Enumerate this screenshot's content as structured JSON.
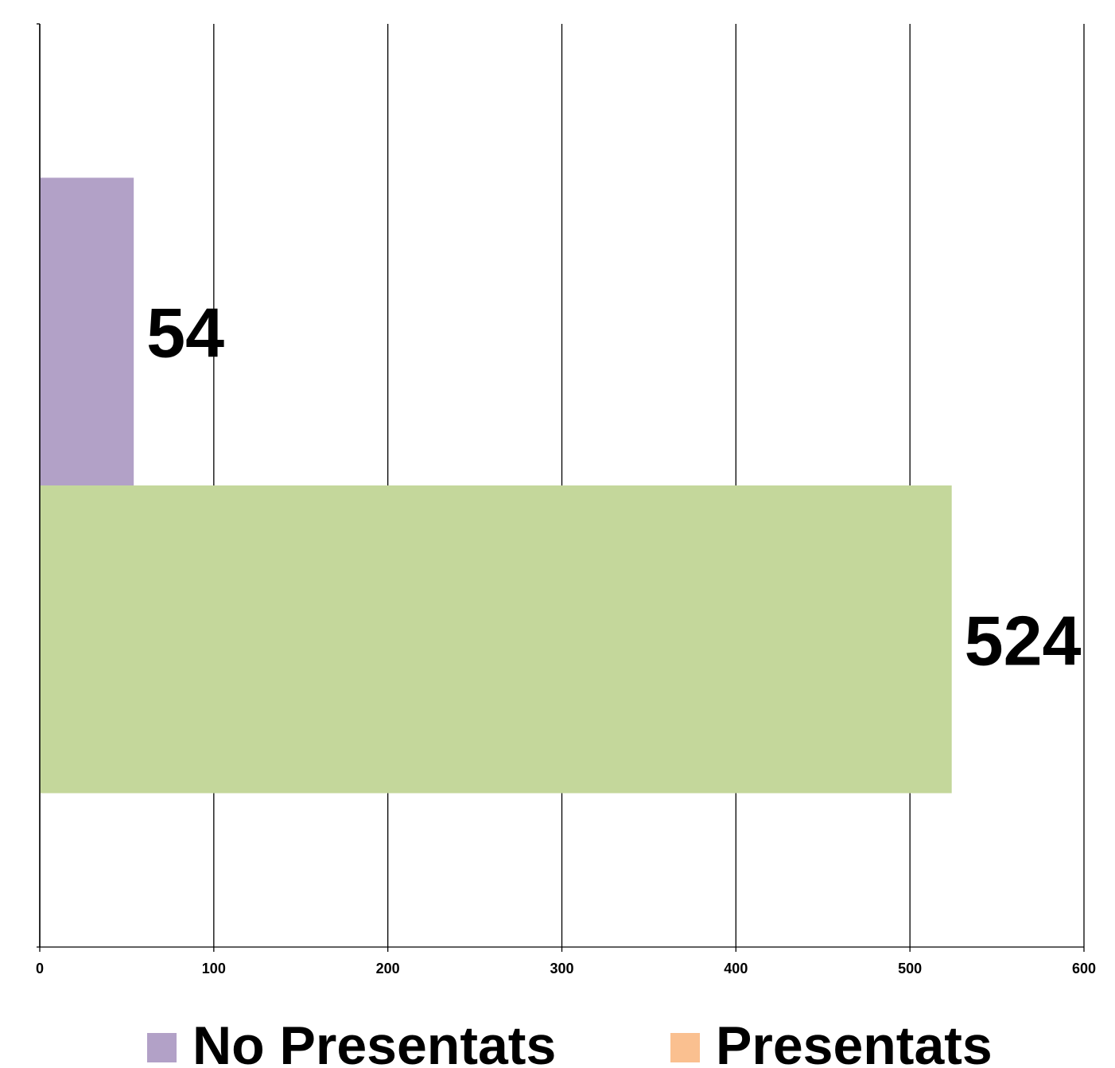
{
  "chart_data": {
    "type": "bar",
    "orientation": "horizontal",
    "title": "",
    "xlabel": "",
    "ylabel": "",
    "xlim": [
      0,
      600
    ],
    "x_ticks": [
      "0",
      "100",
      "200",
      "300",
      "400",
      "500",
      "600"
    ],
    "grid": "vertical",
    "legend_position": "bottom",
    "bars": [
      {
        "value": 54,
        "label": "54",
        "color": "#b2a1c7"
      },
      {
        "value": 524,
        "label": "524",
        "color": "#c4d79b"
      }
    ],
    "legend": [
      {
        "name": "No Presentats",
        "color": "#b2a1c7"
      },
      {
        "name": "Presentats",
        "color": "#fac090"
      }
    ]
  }
}
